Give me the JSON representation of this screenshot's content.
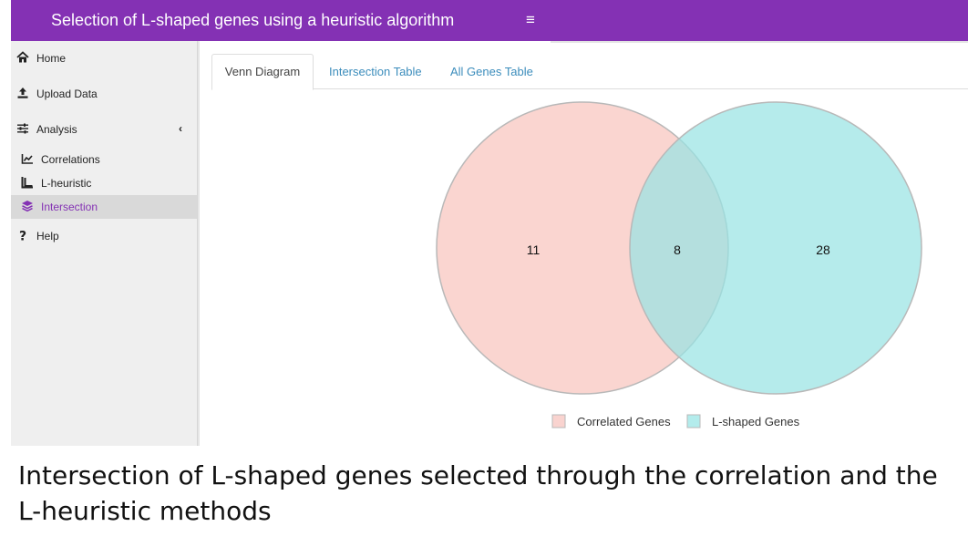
{
  "header": {
    "title": "Selection of L-shaped genes using a heuristic algorithm",
    "toggle_icon": "hamburger-menu-icon",
    "color": "#8431b4"
  },
  "sidebar": {
    "items": [
      {
        "label": "Home",
        "icon": "home-icon"
      },
      {
        "label": "Upload Data",
        "icon": "upload-icon"
      },
      {
        "label": "Analysis",
        "icon": "sliders-icon",
        "chevron": "‹"
      },
      {
        "label": "Correlations",
        "icon": "line-chart-icon"
      },
      {
        "label": "L-heuristic",
        "icon": "l-shape-icon"
      },
      {
        "label": "Intersection",
        "icon": "layers-icon",
        "active": true
      },
      {
        "label": "Help",
        "icon": "question-icon"
      }
    ],
    "active_color": "#8431b4"
  },
  "tabs": [
    {
      "label": "Venn Diagram",
      "active": true
    },
    {
      "label": "Intersection Table",
      "active": false
    },
    {
      "label": "All Genes Table",
      "active": false
    }
  ],
  "venn": {
    "left_only": "11",
    "overlap": "8",
    "right_only": "28",
    "colors": {
      "left": "#f8c9c3",
      "right": "#99e3e3"
    },
    "legend": [
      {
        "label": "Correlated Genes",
        "color": "#f9d3cf"
      },
      {
        "label": "L-shaped Genes",
        "color": "#b3ecec"
      }
    ]
  },
  "caption": "Intersection of L-shaped genes selected through the correlation and the L-heuristic methods"
}
